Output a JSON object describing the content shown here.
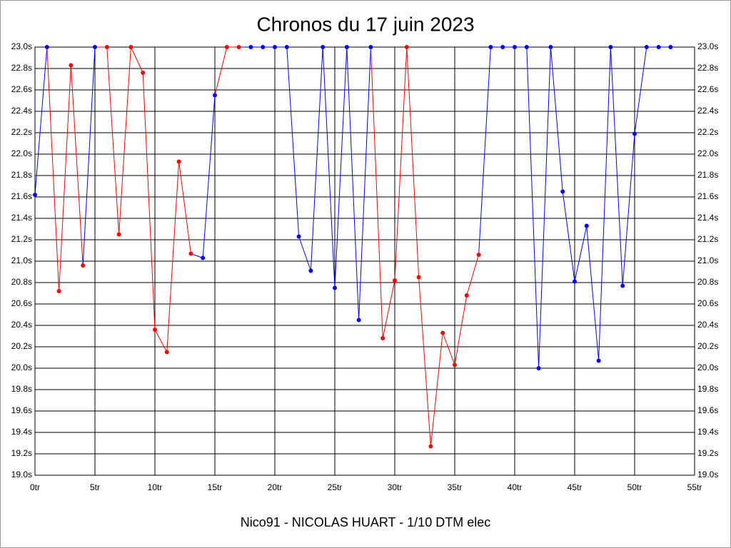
{
  "chart_data": {
    "type": "line",
    "title": "Chronos du 17 juin 2023",
    "footer": "Nico91 - NICOLAS HUART - 1/10 DTM elec",
    "x": [
      0,
      1,
      2,
      3,
      4,
      5,
      6,
      7,
      8,
      9,
      10,
      11,
      12,
      13,
      14,
      15,
      16,
      17,
      18,
      19,
      20,
      21,
      22,
      23,
      24,
      25,
      26,
      27,
      28,
      29,
      30,
      31,
      32,
      33,
      34,
      35,
      36,
      37,
      38,
      39,
      40,
      41,
      42,
      43,
      44,
      45,
      46,
      47,
      48,
      49,
      50,
      51,
      52,
      53
    ],
    "series": [
      {
        "values": [
          21.62,
          23.0,
          20.72,
          22.83,
          20.96,
          23.0,
          23.0,
          21.25,
          23.0,
          22.76,
          20.36,
          20.15,
          21.93,
          21.07,
          21.03,
          22.55,
          23.0,
          23.0,
          23.0,
          23.0,
          23.0,
          23.0,
          21.23,
          20.91,
          23.0,
          20.75,
          23.0,
          20.45,
          23.0,
          20.28,
          20.82,
          23.0,
          20.85,
          19.27,
          20.33,
          20.03,
          20.68,
          21.06,
          23.0,
          23.0,
          23.0,
          23.0,
          20.0,
          23.0,
          21.65,
          20.81,
          21.33,
          20.07,
          23.0,
          20.77,
          22.19,
          23.0,
          23.0,
          23.0
        ],
        "colors": [
          "#0000ff",
          "#0000ff",
          "#ff0000",
          "#ff0000",
          "#ff0000",
          "#0000ff",
          "#ff0000",
          "#ff0000",
          "#ff0000",
          "#ff0000",
          "#ff0000",
          "#ff0000",
          "#ff0000",
          "#ff0000",
          "#0000ff",
          "#0000ff",
          "#ff0000",
          "#ff0000",
          "#0000ff",
          "#0000ff",
          "#0000ff",
          "#0000ff",
          "#0000ff",
          "#0000ff",
          "#0000ff",
          "#0000ff",
          "#0000ff",
          "#0000ff",
          "#0000ff",
          "#ff0000",
          "#ff0000",
          "#ff0000",
          "#ff0000",
          "#ff0000",
          "#ff0000",
          "#ff0000",
          "#ff0000",
          "#ff0000",
          "#0000ff",
          "#0000ff",
          "#0000ff",
          "#0000ff",
          "#0000ff",
          "#0000ff",
          "#0000ff",
          "#0000ff",
          "#0000ff",
          "#0000ff",
          "#0000ff",
          "#0000ff",
          "#0000ff",
          "#0000ff",
          "#0000ff",
          "#0000ff"
        ]
      }
    ],
    "xlim": [
      0,
      55
    ],
    "xticks": [
      {
        "value": 0,
        "label": "0tr"
      },
      {
        "value": 5,
        "label": "5tr"
      },
      {
        "value": 10,
        "label": "10tr"
      },
      {
        "value": 15,
        "label": "15tr"
      },
      {
        "value": 20,
        "label": "20tr"
      },
      {
        "value": 25,
        "label": "25tr"
      },
      {
        "value": 30,
        "label": "30tr"
      },
      {
        "value": 35,
        "label": "35tr"
      },
      {
        "value": 40,
        "label": "40tr"
      },
      {
        "value": 45,
        "label": "45tr"
      },
      {
        "value": 50,
        "label": "50tr"
      },
      {
        "value": 55,
        "label": "55tr"
      }
    ],
    "ylim": [
      19.0,
      23.0
    ],
    "yticks": [
      {
        "value": 19.0,
        "label": "19.0s"
      },
      {
        "value": 19.2,
        "label": "19.2s"
      },
      {
        "value": 19.4,
        "label": "19.4s"
      },
      {
        "value": 19.6,
        "label": "19.6s"
      },
      {
        "value": 19.8,
        "label": "19.8s"
      },
      {
        "value": 20.0,
        "label": "20.0s"
      },
      {
        "value": 20.2,
        "label": "20.2s"
      },
      {
        "value": 20.4,
        "label": "20.4s"
      },
      {
        "value": 20.6,
        "label": "20.6s"
      },
      {
        "value": 20.8,
        "label": "20.8s"
      },
      {
        "value": 21.0,
        "label": "21.0s"
      },
      {
        "value": 21.2,
        "label": "21.2s"
      },
      {
        "value": 21.4,
        "label": "21.4s"
      },
      {
        "value": 21.6,
        "label": "21.6s"
      },
      {
        "value": 21.8,
        "label": "21.8s"
      },
      {
        "value": 22.0,
        "label": "22.0s"
      },
      {
        "value": 22.2,
        "label": "22.2s"
      },
      {
        "value": 22.4,
        "label": "22.4s"
      },
      {
        "value": 22.6,
        "label": "22.6s"
      },
      {
        "value": 22.8,
        "label": "22.8s"
      },
      {
        "value": 23.0,
        "label": "23.0s"
      }
    ],
    "grid": true
  }
}
